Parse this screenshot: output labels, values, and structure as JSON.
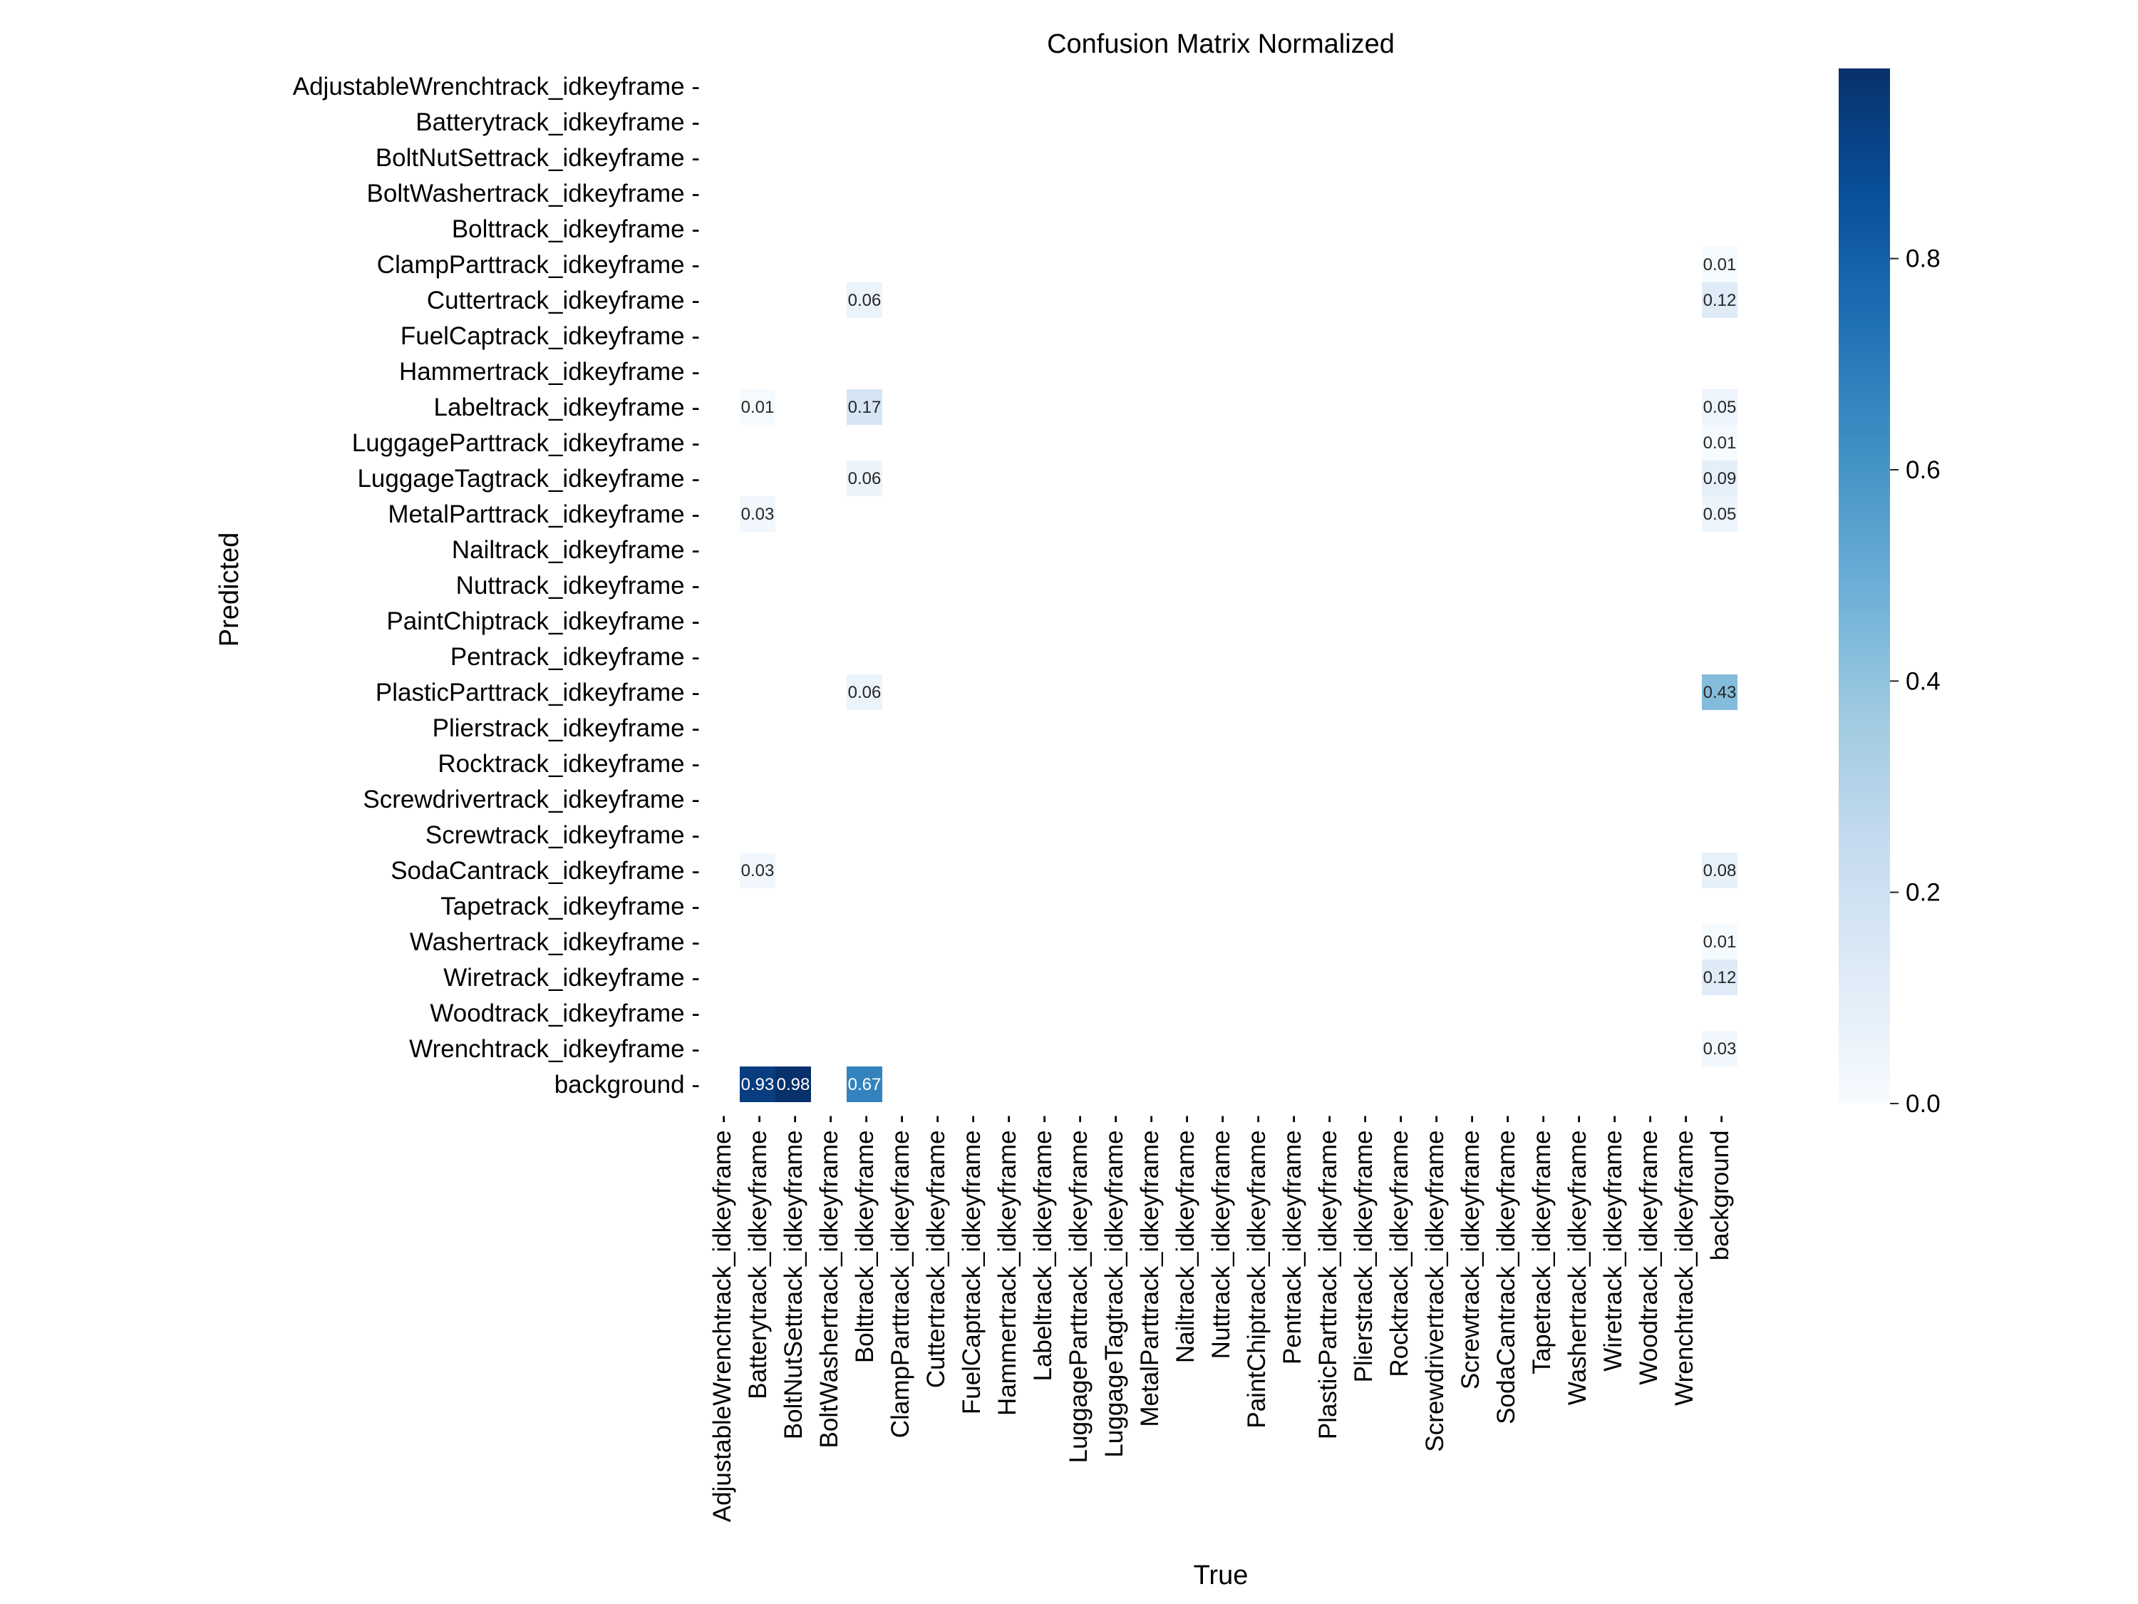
{
  "chart_data": {
    "type": "heatmap",
    "title": "Confusion Matrix Normalized",
    "xlabel": "True",
    "ylabel": "Predicted",
    "x_categories": [
      "AdjustableWrenchtrack_idkeyframe",
      "Batterytrack_idkeyframe",
      "BoltNutSettrack_idkeyframe",
      "BoltWashertrack_idkeyframe",
      "Bolttrack_idkeyframe",
      "ClampParttrack_idkeyframe",
      "Cuttertrack_idkeyframe",
      "FuelCaptrack_idkeyframe",
      "Hammertrack_idkeyframe",
      "Labeltrack_idkeyframe",
      "LuggageParttrack_idkeyframe",
      "LuggageTagtrack_idkeyframe",
      "MetalParttrack_idkeyframe",
      "Nailtrack_idkeyframe",
      "Nuttrack_idkeyframe",
      "PaintChiptrack_idkeyframe",
      "Pentrack_idkeyframe",
      "PlasticParttrack_idkeyframe",
      "Plierstrack_idkeyframe",
      "Rocktrack_idkeyframe",
      "Screwdrivertrack_idkeyframe",
      "Screwtrack_idkeyframe",
      "SodaCantrack_idkeyframe",
      "Tapetrack_idkeyframe",
      "Washertrack_idkeyframe",
      "Wiretrack_idkeyframe",
      "Woodtrack_idkeyframe",
      "Wrenchtrack_idkeyframe",
      "background"
    ],
    "y_categories": [
      "AdjustableWrenchtrack_idkeyframe",
      "Batterytrack_idkeyframe",
      "BoltNutSettrack_idkeyframe",
      "BoltWashertrack_idkeyframe",
      "Bolttrack_idkeyframe",
      "ClampParttrack_idkeyframe",
      "Cuttertrack_idkeyframe",
      "FuelCaptrack_idkeyframe",
      "Hammertrack_idkeyframe",
      "Labeltrack_idkeyframe",
      "LuggageParttrack_idkeyframe",
      "LuggageTagtrack_idkeyframe",
      "MetalParttrack_idkeyframe",
      "Nailtrack_idkeyframe",
      "Nuttrack_idkeyframe",
      "PaintChiptrack_idkeyframe",
      "Pentrack_idkeyframe",
      "PlasticParttrack_idkeyframe",
      "Plierstrack_idkeyframe",
      "Rocktrack_idkeyframe",
      "Screwdrivertrack_idkeyframe",
      "Screwtrack_idkeyframe",
      "SodaCantrack_idkeyframe",
      "Tapetrack_idkeyframe",
      "Washertrack_idkeyframe",
      "Wiretrack_idkeyframe",
      "Woodtrack_idkeyframe",
      "Wrenchtrack_idkeyframe",
      "background"
    ],
    "cells": [
      {
        "pred": "ClampParttrack_idkeyframe",
        "true": "background",
        "value": 0.01,
        "label": "0.01"
      },
      {
        "pred": "Cuttertrack_idkeyframe",
        "true": "Bolttrack_idkeyframe",
        "value": 0.06,
        "label": "0.06"
      },
      {
        "pred": "Cuttertrack_idkeyframe",
        "true": "background",
        "value": 0.12,
        "label": "0.12"
      },
      {
        "pred": "Labeltrack_idkeyframe",
        "true": "Batterytrack_idkeyframe",
        "value": 0.01,
        "label": "0.01"
      },
      {
        "pred": "Labeltrack_idkeyframe",
        "true": "Bolttrack_idkeyframe",
        "value": 0.17,
        "label": "0.17"
      },
      {
        "pred": "Labeltrack_idkeyframe",
        "true": "background",
        "value": 0.05,
        "label": "0.05"
      },
      {
        "pred": "LuggageParttrack_idkeyframe",
        "true": "background",
        "value": 0.01,
        "label": "0.01"
      },
      {
        "pred": "LuggageTagtrack_idkeyframe",
        "true": "Bolttrack_idkeyframe",
        "value": 0.06,
        "label": "0.06"
      },
      {
        "pred": "LuggageTagtrack_idkeyframe",
        "true": "background",
        "value": 0.09,
        "label": "0.09"
      },
      {
        "pred": "MetalParttrack_idkeyframe",
        "true": "Batterytrack_idkeyframe",
        "value": 0.03,
        "label": "0.03"
      },
      {
        "pred": "MetalParttrack_idkeyframe",
        "true": "background",
        "value": 0.05,
        "label": "0.05"
      },
      {
        "pred": "PlasticParttrack_idkeyframe",
        "true": "Bolttrack_idkeyframe",
        "value": 0.06,
        "label": "0.06"
      },
      {
        "pred": "PlasticParttrack_idkeyframe",
        "true": "background",
        "value": 0.43,
        "label": "0.43"
      },
      {
        "pred": "SodaCantrack_idkeyframe",
        "true": "Batterytrack_idkeyframe",
        "value": 0.03,
        "label": "0.03"
      },
      {
        "pred": "SodaCantrack_idkeyframe",
        "true": "background",
        "value": 0.08,
        "label": "0.08"
      },
      {
        "pred": "Washertrack_idkeyframe",
        "true": "background",
        "value": 0.01,
        "label": "0.01"
      },
      {
        "pred": "Wiretrack_idkeyframe",
        "true": "background",
        "value": 0.12,
        "label": "0.12"
      },
      {
        "pred": "Wrenchtrack_idkeyframe",
        "true": "background",
        "value": 0.03,
        "label": "0.03"
      },
      {
        "pred": "background",
        "true": "Batterytrack_idkeyframe",
        "value": 0.93,
        "label": "0.93"
      },
      {
        "pred": "background",
        "true": "BoltNutSettrack_idkeyframe",
        "value": 0.98,
        "label": "0.98"
      },
      {
        "pred": "background",
        "true": "Bolttrack_idkeyframe",
        "value": 0.67,
        "label": "0.67"
      }
    ],
    "colorbar": {
      "colormap": "Blues",
      "range": [
        0.0,
        0.98
      ],
      "ticks": [
        0.0,
        0.2,
        0.4,
        0.6,
        0.8
      ],
      "tick_labels": [
        "0.0",
        "0.2",
        "0.4",
        "0.6",
        "0.8"
      ]
    },
    "colors": {
      "cmap_stops": [
        "#f7fbff",
        "#deebf7",
        "#c6dbef",
        "#9ecae1",
        "#6baed6",
        "#4292c6",
        "#2171b5",
        "#08519c",
        "#08306b"
      ],
      "text_dark": "#262626",
      "text_light": "#ffffff"
    }
  }
}
